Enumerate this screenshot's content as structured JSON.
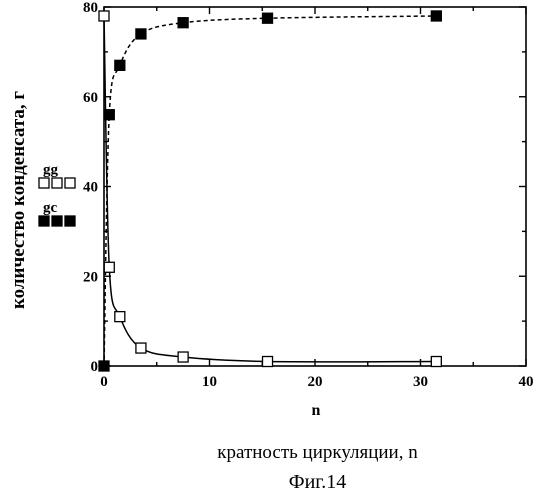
{
  "chart_data": {
    "type": "scatter",
    "ylabel": "количество конденсата, г",
    "xlabel": "кратность циркуляции, n",
    "x_axis_symbol": "n",
    "figure_caption": "Фиг.14",
    "xlim": [
      0,
      40
    ],
    "ylim": [
      0,
      80
    ],
    "xticks": [
      0,
      10,
      20,
      30,
      40
    ],
    "yticks": [
      0,
      20,
      40,
      60,
      80
    ],
    "grid": false,
    "legend_position": "left, outside plot",
    "series": [
      {
        "name": "gg",
        "marker": "open-square",
        "line": "solid",
        "color": "#000000",
        "x": [
          0,
          0.5,
          1.5,
          3.5,
          7.5,
          15.5,
          31.5
        ],
        "y": [
          78,
          22,
          11,
          4,
          2,
          1,
          1
        ]
      },
      {
        "name": "gc",
        "marker": "filled-square",
        "line": "dashed",
        "color": "#000000",
        "x": [
          0,
          0.5,
          1.5,
          3.5,
          7.5,
          15.5,
          31.5
        ],
        "y": [
          0,
          56,
          67,
          74,
          76.5,
          77.5,
          78
        ]
      }
    ]
  }
}
